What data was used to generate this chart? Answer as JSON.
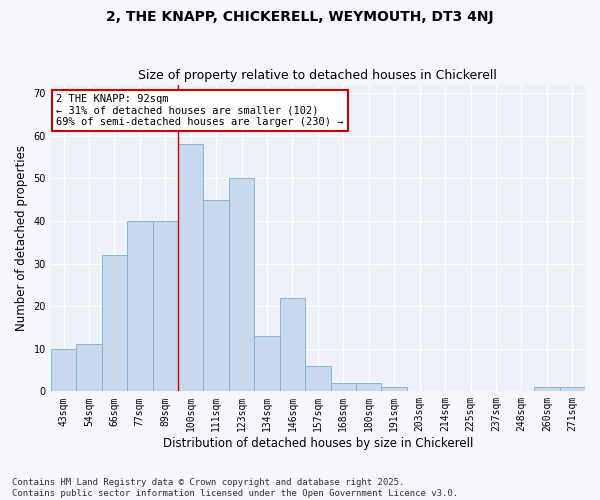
{
  "title": "2, THE KNAPP, CHICKERELL, WEYMOUTH, DT3 4NJ",
  "subtitle": "Size of property relative to detached houses in Chickerell",
  "xlabel": "Distribution of detached houses by size in Chickerell",
  "ylabel": "Number of detached properties",
  "categories": [
    "43sqm",
    "54sqm",
    "66sqm",
    "77sqm",
    "89sqm",
    "100sqm",
    "111sqm",
    "123sqm",
    "134sqm",
    "146sqm",
    "157sqm",
    "168sqm",
    "180sqm",
    "191sqm",
    "203sqm",
    "214sqm",
    "225sqm",
    "237sqm",
    "248sqm",
    "260sqm",
    "271sqm"
  ],
  "values": [
    10,
    11,
    32,
    40,
    40,
    58,
    45,
    50,
    13,
    22,
    6,
    2,
    2,
    1,
    0,
    0,
    0,
    0,
    0,
    1,
    1
  ],
  "bar_color": "#c9d9ed",
  "bar_edge_color": "#7aafd4",
  "vline_x": 4.5,
  "vline_color": "#cc0000",
  "annotation_text": "2 THE KNAPP: 92sqm\n← 31% of detached houses are smaller (102)\n69% of semi-detached houses are larger (230) →",
  "annotation_box_color": "#ffffff",
  "annotation_box_edge": "#cc0000",
  "ylim": [
    0,
    72
  ],
  "yticks": [
    0,
    10,
    20,
    30,
    40,
    50,
    60,
    70
  ],
  "footer": "Contains HM Land Registry data © Crown copyright and database right 2025.\nContains public sector information licensed under the Open Government Licence v3.0.",
  "bg_color": "#eef2f8",
  "fig_bg_color": "#f5f7fb",
  "title_fontsize": 10,
  "subtitle_fontsize": 9,
  "axis_label_fontsize": 8.5,
  "tick_fontsize": 7,
  "footer_fontsize": 6.5,
  "annotation_fontsize": 7.5
}
